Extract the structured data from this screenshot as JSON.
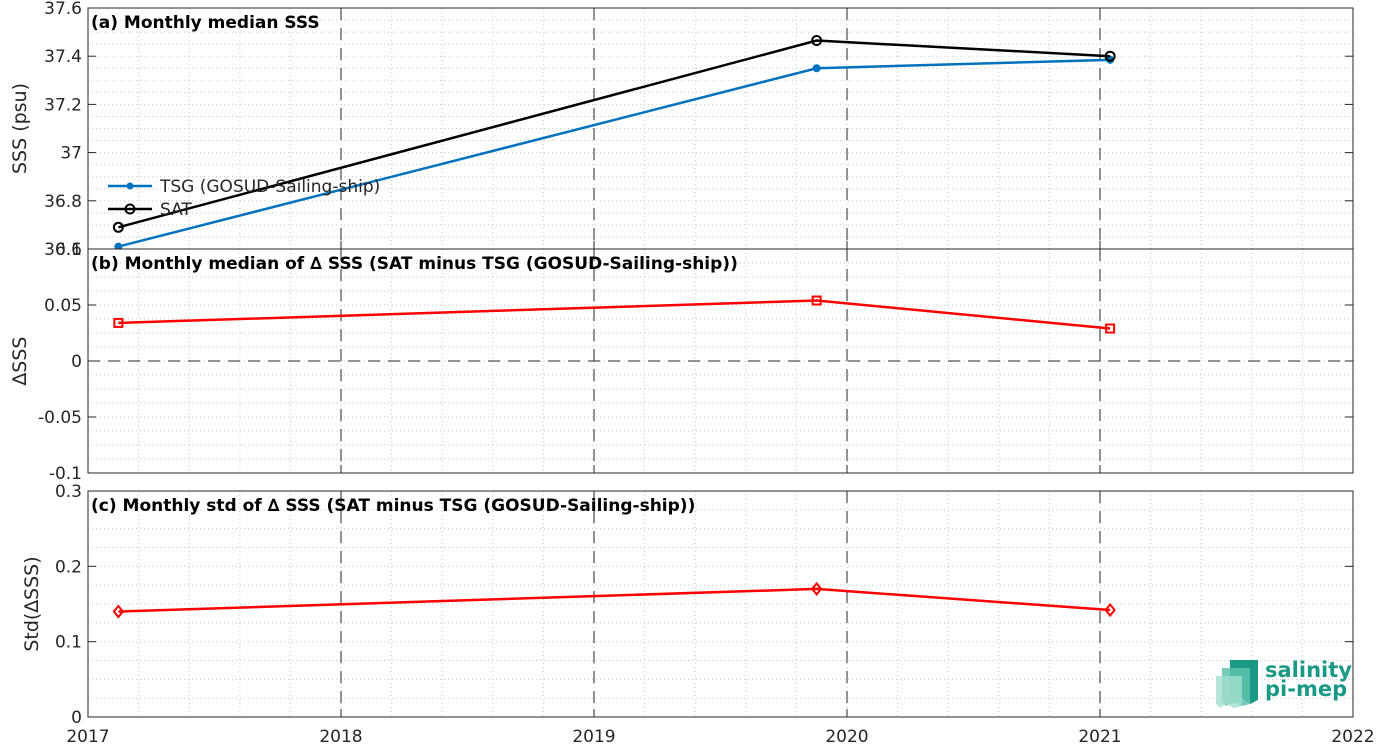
{
  "chart_data": [
    {
      "type": "line",
      "title": "(a) Monthly median SSS",
      "ylabel": "SSS (psu)",
      "xlim": [
        2017,
        2022
      ],
      "ylim": [
        36.6,
        37.6
      ],
      "yticks": [
        36.6,
        36.8,
        37,
        37.2,
        37.4,
        37.6
      ],
      "ytick_labels": [
        "36.6",
        "36.8",
        "37",
        "37.2",
        "37.4",
        "37.6"
      ],
      "grid": true,
      "legend_position": "left",
      "series": [
        {
          "name": "TSG (GOSUD-Sailing-ship)",
          "color": "#0072bd",
          "marker": "dot",
          "x": [
            2017.12,
            2019.88,
            2021.04
          ],
          "y": [
            36.61,
            37.35,
            37.385
          ]
        },
        {
          "name": "SAT",
          "color": "#000000",
          "marker": "circle",
          "x": [
            2017.12,
            2019.88,
            2021.04
          ],
          "y": [
            36.69,
            37.465,
            37.4
          ]
        }
      ]
    },
    {
      "type": "line",
      "title": "(b) Monthly median of ∆ SSS (SAT minus TSG (GOSUD-Sailing-ship))",
      "ylabel": "∆SSS",
      "xlim": [
        2017,
        2022
      ],
      "ylim": [
        -0.1,
        0.1
      ],
      "yticks": [
        -0.1,
        -0.05,
        0,
        0.05,
        0.1
      ],
      "ytick_labels": [
        "-0.1",
        "-0.05",
        "0",
        "0.05",
        "0.1"
      ],
      "grid": true,
      "zero_line": true,
      "series": [
        {
          "color": "#ff0000",
          "marker": "square",
          "x": [
            2017.12,
            2019.88,
            2021.04
          ],
          "y": [
            0.034,
            0.054,
            0.029
          ]
        }
      ]
    },
    {
      "type": "line",
      "title": "(c) Monthly std of ∆ SSS (SAT minus TSG (GOSUD-Sailing-ship))",
      "ylabel": "Std(∆SSS)",
      "xlim": [
        2017,
        2022
      ],
      "ylim": [
        0,
        0.3
      ],
      "yticks": [
        0,
        0.1,
        0.2,
        0.3
      ],
      "ytick_labels": [
        "0",
        "0.1",
        "0.2",
        "0.3"
      ],
      "xticks": [
        2017,
        2018,
        2019,
        2020,
        2021,
        2022
      ],
      "xtick_labels": [
        "2017",
        "2018",
        "2019",
        "2020",
        "2021",
        "2022"
      ],
      "grid": true,
      "series": [
        {
          "color": "#ff0000",
          "marker": "diamond",
          "x": [
            2017.12,
            2019.88,
            2021.04
          ],
          "y": [
            0.14,
            0.17,
            0.142
          ]
        }
      ]
    }
  ],
  "logo": {
    "line1": "salinity",
    "line2": "pi-mep",
    "color": "#1a9985"
  }
}
